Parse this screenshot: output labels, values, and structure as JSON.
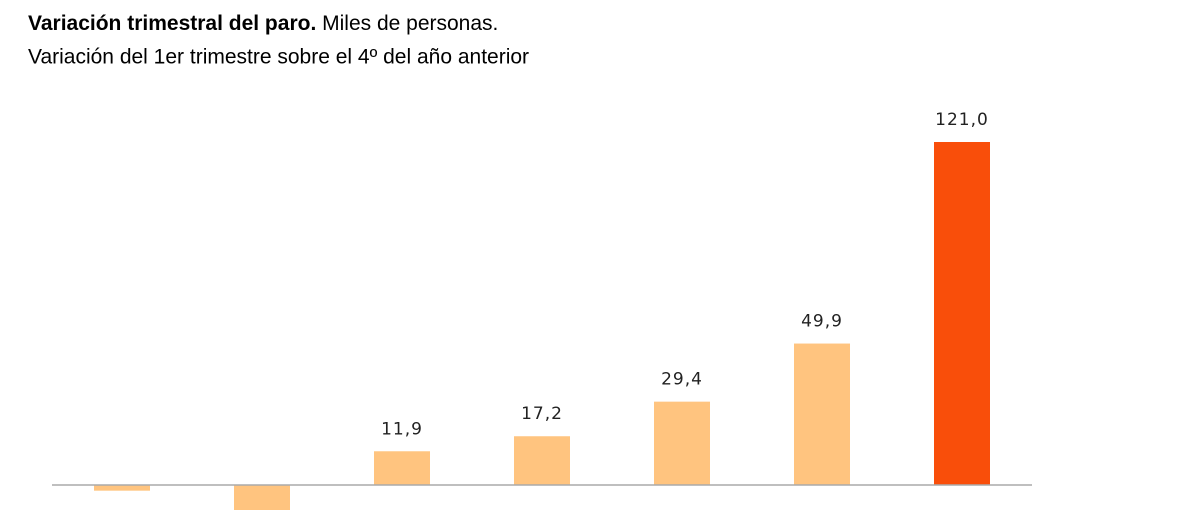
{
  "chart_data": {
    "type": "bar",
    "title": "Variación trimestral del paro.",
    "units": "Miles de personas.",
    "subtitle": "Variación del 1er trimestre sobre el 4º del año anterior",
    "categories": [
      null,
      null,
      null,
      null,
      null,
      null,
      null
    ],
    "values": [
      -2,
      -10,
      11.9,
      17.2,
      29.4,
      49.9,
      121.0
    ],
    "value_labels": [
      null,
      null,
      "11,9",
      "17,2",
      "29,4",
      "49,9",
      "121,0"
    ],
    "colors": [
      "#ffc47f",
      "#ffc47f",
      "#ffc47f",
      "#ffc47f",
      "#ffc47f",
      "#ffc47f",
      "#f94e0a"
    ]
  }
}
